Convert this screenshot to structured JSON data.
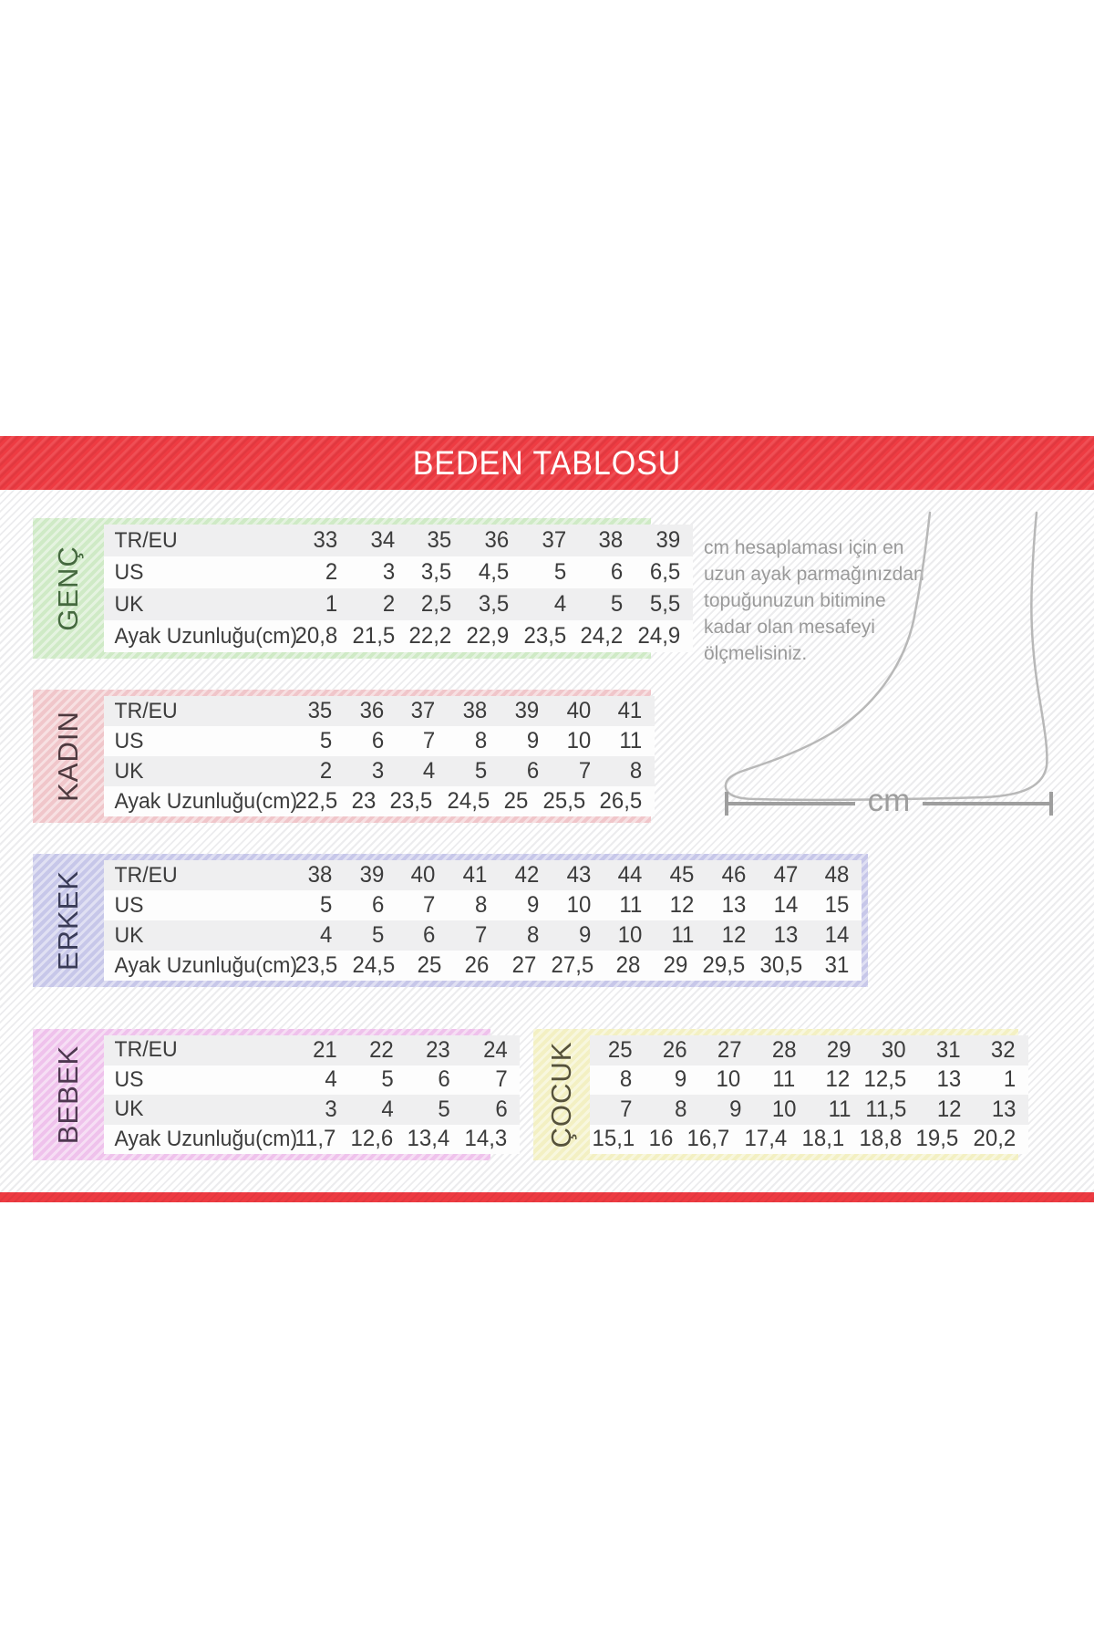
{
  "page": {
    "title": "BEDEN TABLOSU",
    "accent_red": "#ee3b42",
    "bg_stripe_color": "#ececee",
    "row_gray": "#efeff0"
  },
  "instruction_lines": [
    "cm hesaplaması için en",
    "uzun ayak parmağınızdan",
    "topuğunuzun bitimine",
    "kadar olan mesafeyi",
    "ölçmelisiniz."
  ],
  "measure": {
    "cm_label": "cm"
  },
  "tables": [
    {
      "id": "genc",
      "label": "GENÇ",
      "band_color": "#cfeac6",
      "label_color": "#45693f",
      "rows": [
        {
          "label": "TR/EU",
          "values": [
            "33",
            "34",
            "35",
            "36",
            "37",
            "38",
            "39"
          ]
        },
        {
          "label": "US",
          "values": [
            "2",
            "3",
            "3,5",
            "4,5",
            "5",
            "6",
            "6,5"
          ]
        },
        {
          "label": "UK",
          "values": [
            "1",
            "2",
            "2,5",
            "3,5",
            "4",
            "5",
            "5,5"
          ]
        },
        {
          "label": "Ayak Uzunluğu(cm)",
          "values": [
            "20,8",
            "21,5",
            "22,2",
            "22,9",
            "23,5",
            "24,2",
            "24,9"
          ]
        }
      ]
    },
    {
      "id": "kadin",
      "label": "KADIN",
      "band_color": "#f0c6ca",
      "label_color": "#4e3a3f",
      "rows": [
        {
          "label": "TR/EU",
          "values": [
            "35",
            "36",
            "37",
            "38",
            "39",
            "40",
            "41"
          ]
        },
        {
          "label": "US",
          "values": [
            "5",
            "6",
            "7",
            "8",
            "9",
            "10",
            "11"
          ]
        },
        {
          "label": "UK",
          "values": [
            "2",
            "3",
            "4",
            "5",
            "6",
            "7",
            "8"
          ]
        },
        {
          "label": "Ayak Uzunluğu(cm)",
          "values": [
            "22,5",
            "23",
            "23,5",
            "24,5",
            "25",
            "25,5",
            "26,5"
          ]
        }
      ]
    },
    {
      "id": "erkek",
      "label": "ERKEK",
      "band_color": "#c7c7e9",
      "label_color": "#3a3c58",
      "rows": [
        {
          "label": "TR/EU",
          "values": [
            "38",
            "39",
            "40",
            "41",
            "42",
            "43",
            "44",
            "45",
            "46",
            "47",
            "48"
          ]
        },
        {
          "label": "US",
          "values": [
            "5",
            "6",
            "7",
            "8",
            "9",
            "10",
            "11",
            "12",
            "13",
            "14",
            "15"
          ]
        },
        {
          "label": "UK",
          "values": [
            "4",
            "5",
            "6",
            "7",
            "8",
            "9",
            "10",
            "11",
            "12",
            "13",
            "14"
          ]
        },
        {
          "label": "Ayak Uzunluğu(cm)",
          "values": [
            "23,5",
            "24,5",
            "25",
            "26",
            "27",
            "27,5",
            "28",
            "29",
            "29,5",
            "30,5",
            "31"
          ]
        }
      ]
    },
    {
      "id": "bebek",
      "label": "BEBEK",
      "band_color": "#efc2ec",
      "label_color": "#4e3850",
      "rows": [
        {
          "label": "TR/EU",
          "values": [
            "21",
            "22",
            "23",
            "24"
          ]
        },
        {
          "label": "US",
          "values": [
            "4",
            "5",
            "6",
            "7"
          ]
        },
        {
          "label": "UK",
          "values": [
            "3",
            "4",
            "5",
            "6"
          ]
        },
        {
          "label": "Ayak Uzunluğu(cm)",
          "values": [
            "11,7",
            "12,6",
            "13,4",
            "14,3"
          ]
        }
      ]
    },
    {
      "id": "cocuk",
      "label": "ÇOCUK",
      "band_color": "#f3f0c3",
      "label_color": "#56523b",
      "rows": [
        {
          "label": "",
          "values": [
            "25",
            "26",
            "27",
            "28",
            "29",
            "30",
            "31",
            "32"
          ]
        },
        {
          "label": "",
          "values": [
            "8",
            "9",
            "10",
            "11",
            "12",
            "12,5",
            "13",
            "1"
          ]
        },
        {
          "label": "",
          "values": [
            "7",
            "8",
            "9",
            "10",
            "11",
            "11,5",
            "12",
            "13"
          ]
        },
        {
          "label": "",
          "values": [
            "15,1",
            "16",
            "16,7",
            "17,4",
            "18,1",
            "18,8",
            "19,5",
            "20,2"
          ]
        }
      ]
    }
  ]
}
